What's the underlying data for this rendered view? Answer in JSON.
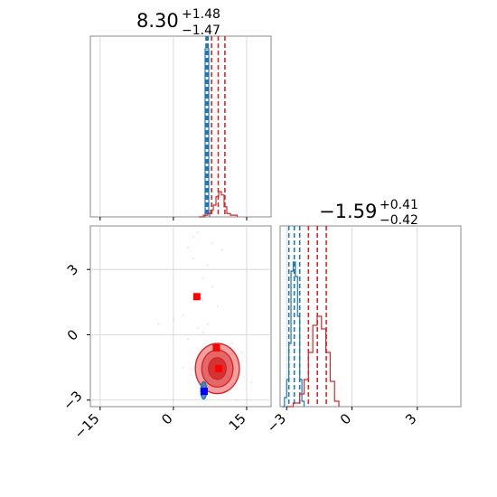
{
  "chart_data": [
    {
      "type": "histogram",
      "panel": "marginal-x",
      "title": {
        "value": "8.30",
        "plus": "+1.48",
        "minus": "−1.47"
      },
      "xlim": [
        -20,
        20
      ],
      "grid": true,
      "series": [
        {
          "color": "#1f77b4",
          "step_x": [
            5.2,
            5.4,
            5.6,
            5.8,
            6.0,
            6.2,
            6.4
          ],
          "step_y": [
            0.0,
            1.0,
            1.0,
            1.0,
            1.0,
            0.02,
            0.0
          ],
          "quantile_lines": [
            5.6,
            5.8,
            6.05
          ]
        },
        {
          "color": "#d62728",
          "step_x": [
            4.0,
            5.0,
            6.0,
            6.6,
            7.2,
            7.8,
            8.4,
            9.0,
            9.6,
            10.2,
            11.0,
            12.5
          ],
          "step_y": [
            0.0,
            0.01,
            0.02,
            0.04,
            0.07,
            0.12,
            0.15,
            0.13,
            0.06,
            0.02,
            0.01,
            0.0
          ],
          "quantile_lines": [
            6.83,
            8.3,
            9.78
          ]
        }
      ]
    },
    {
      "type": "scatter",
      "panel": "joint",
      "xlim": [
        -17,
        20
      ],
      "ylim": [
        -3.3,
        5.0
      ],
      "xticks": [
        "−15",
        "0",
        "15"
      ],
      "xtick_values": [
        -15,
        0,
        15
      ],
      "yticks": [
        "−3",
        "0",
        "3"
      ],
      "ytick_values": [
        -3,
        0,
        3
      ],
      "grid": true,
      "markers": [
        {
          "color": "#ff0000",
          "shape": "square",
          "x": 4.8,
          "y": 1.75
        },
        {
          "color": "#ff0000",
          "shape": "square",
          "x": 8.8,
          "y": -0.6
        },
        {
          "color": "#ff0000",
          "shape": "square",
          "x": 9.3,
          "y": -1.55
        },
        {
          "color": "#0000ff",
          "shape": "square",
          "x": 6.3,
          "y": -2.6
        }
      ],
      "contours": [
        {
          "color": "#d62728",
          "cx": 9.0,
          "cy": -1.55,
          "rx": 4.5,
          "ry": 1.15,
          "fill": "#f08080"
        },
        {
          "color": "#d62728",
          "cx": 9.0,
          "cy": -1.55,
          "rx": 3.2,
          "ry": 0.85,
          "fill": "#e05555"
        },
        {
          "color": "#d62728",
          "cx": 9.0,
          "cy": -1.55,
          "rx": 1.8,
          "ry": 0.5,
          "fill": "#cc2222"
        },
        {
          "color": "#1f77b4",
          "cx": 6.2,
          "cy": -2.55,
          "rx": 0.6,
          "ry": 0.4,
          "fill": "#1f77b4"
        }
      ],
      "scatter_points": [
        [
          5,
          4.7
        ],
        [
          4,
          4.5
        ],
        [
          8,
          4.2
        ],
        [
          3,
          4.0
        ],
        [
          10,
          3.9
        ],
        [
          4,
          3.5
        ],
        [
          7,
          3.2
        ],
        [
          6,
          2.6
        ],
        [
          8,
          2.2
        ],
        [
          6,
          1.6
        ],
        [
          0,
          0.7
        ],
        [
          2,
          0.9
        ],
        [
          -3,
          0.5
        ],
        [
          5,
          0.3
        ],
        [
          6,
          0.1
        ],
        [
          3,
          -0.2
        ],
        [
          12,
          -0.4
        ],
        [
          14,
          -0.8
        ],
        [
          10,
          -2.4
        ],
        [
          16,
          -2.2
        ],
        [
          13,
          -3.0
        ],
        [
          2,
          -1.5
        ],
        [
          7,
          0.5
        ],
        [
          9,
          1.3
        ]
      ]
    },
    {
      "type": "histogram",
      "panel": "marginal-y",
      "title": {
        "value": "−1.59",
        "plus": "+0.41",
        "minus": "−0.42"
      },
      "xlim": [
        -3.3,
        5.0
      ],
      "xticks": [
        "−3",
        "0",
        "3"
      ],
      "xtick_values": [
        -3,
        0,
        3
      ],
      "grid": true,
      "series": [
        {
          "color": "#1f77b4",
          "step_x": [
            -3.2,
            -3.1,
            -3.0,
            -2.9,
            -2.8,
            -2.7,
            -2.6,
            -2.5,
            -2.4,
            -2.3,
            -2.2
          ],
          "step_y": [
            0.0,
            0.05,
            0.15,
            0.35,
            0.75,
            0.8,
            0.72,
            0.5,
            0.15,
            0.03,
            0.0
          ],
          "quantile_lines": [
            -2.9,
            -2.65,
            -2.4
          ]
        },
        {
          "color": "#d62728",
          "step_x": [
            -3.0,
            -2.7,
            -2.4,
            -2.2,
            -2.0,
            -1.8,
            -1.6,
            -1.4,
            -1.2,
            -1.0,
            -0.8,
            -0.6
          ],
          "step_y": [
            0.0,
            0.02,
            0.07,
            0.15,
            0.3,
            0.45,
            0.5,
            0.43,
            0.3,
            0.14,
            0.03,
            0.0
          ],
          "quantile_lines": [
            -2.0,
            -1.59,
            -1.18
          ]
        }
      ]
    }
  ]
}
